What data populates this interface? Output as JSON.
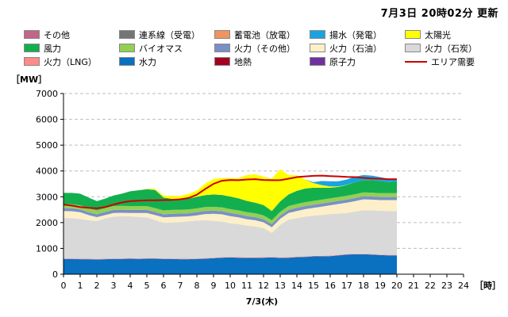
{
  "update_title": "7月3日 20時02分 更新",
  "legend": [
    {
      "key": "other",
      "label": "その他",
      "color": "#c36586",
      "kind": "area"
    },
    {
      "key": "interconnect",
      "label": "連系線（受電）",
      "color": "#757575",
      "kind": "area"
    },
    {
      "key": "battery",
      "label": "蓄電池（放電）",
      "color": "#f0955f",
      "kind": "area"
    },
    {
      "key": "pumped",
      "label": "揚水（発電）",
      "color": "#1aa3e0",
      "kind": "area"
    },
    {
      "key": "solar",
      "label": "太陽光",
      "color": "#ffff00",
      "kind": "area"
    },
    {
      "key": "wind",
      "label": "風力",
      "color": "#13af4f",
      "kind": "area"
    },
    {
      "key": "biomass",
      "label": "バイオマス",
      "color": "#93cf53",
      "kind": "area"
    },
    {
      "key": "thermal_other",
      "label": "火力（その他）",
      "color": "#7a8fc8",
      "kind": "area"
    },
    {
      "key": "oil",
      "label": "火力（石油）",
      "color": "#fdf0c8",
      "kind": "area"
    },
    {
      "key": "coal",
      "label": "火力（石炭）",
      "color": "#d9d9d9",
      "kind": "area"
    },
    {
      "key": "lng",
      "label": "火力（LNG）",
      "color": "#ff8a8a",
      "kind": "area"
    },
    {
      "key": "hydro",
      "label": "水力",
      "color": "#0a70c0",
      "kind": "area"
    },
    {
      "key": "geothermal",
      "label": "地熱",
      "color": "#a50021",
      "kind": "area"
    },
    {
      "key": "nuclear",
      "label": "原子力",
      "color": "#7030a0",
      "kind": "area"
    },
    {
      "key": "demand",
      "label": "エリア需要",
      "color": "#cc0000",
      "kind": "line"
    }
  ],
  "chart_data": {
    "type": "area",
    "stacked": true,
    "ylabel": "［MW］",
    "xlabel": "7/3(木)",
    "x_unit": "［時］",
    "ylim": [
      0,
      7000
    ],
    "xlim": [
      0,
      24
    ],
    "yticks": [
      0,
      1000,
      2000,
      3000,
      4000,
      5000,
      6000,
      7000
    ],
    "xticks": [
      "0",
      "1",
      "2",
      "3",
      "4",
      "5",
      "6",
      "7",
      "8",
      "9",
      "10",
      "11",
      "12",
      "13",
      "14",
      "15",
      "16",
      "17",
      "18",
      "19",
      "20",
      "21",
      "22",
      "23",
      "24"
    ],
    "grid": true,
    "x": [
      0,
      0.5,
      1,
      1.5,
      2,
      2.5,
      3,
      3.5,
      4,
      4.5,
      5,
      5.5,
      6,
      6.5,
      7,
      7.5,
      8,
      8.5,
      9,
      9.5,
      10,
      10.5,
      11,
      11.5,
      12,
      12.5,
      13,
      13.5,
      14,
      14.5,
      15,
      15.5,
      16,
      16.5,
      17,
      17.5,
      18,
      18.5,
      19,
      19.5,
      20
    ],
    "series": [
      {
        "name": "水力",
        "key": "hydro",
        "color": "#0a70c0",
        "values": [
          590,
          590,
          580,
          580,
          570,
          580,
          590,
          590,
          600,
          590,
          600,
          600,
          590,
          590,
          580,
          580,
          590,
          600,
          620,
          640,
          650,
          640,
          630,
          630,
          640,
          650,
          630,
          640,
          660,
          670,
          690,
          690,
          700,
          730,
          760,
          770,
          770,
          760,
          740,
          730,
          730
        ]
      },
      {
        "name": "火力（LNG）",
        "key": "lng",
        "color": "#ff8a8a",
        "values": [
          20,
          20,
          20,
          20,
          20,
          20,
          20,
          20,
          20,
          20,
          20,
          20,
          20,
          20,
          20,
          20,
          20,
          20,
          20,
          20,
          20,
          20,
          20,
          20,
          20,
          20,
          20,
          20,
          20,
          20,
          20,
          20,
          20,
          20,
          20,
          20,
          20,
          20,
          20,
          20,
          20
        ]
      },
      {
        "name": "火力（石炭）",
        "key": "coal",
        "color": "#d9d9d9",
        "values": [
          1570,
          1560,
          1540,
          1490,
          1470,
          1560,
          1620,
          1640,
          1620,
          1610,
          1580,
          1480,
          1380,
          1390,
          1420,
          1450,
          1470,
          1470,
          1430,
          1380,
          1300,
          1280,
          1230,
          1200,
          1130,
          930,
          1260,
          1450,
          1490,
          1540,
          1560,
          1590,
          1610,
          1600,
          1590,
          1640,
          1690,
          1690,
          1700,
          1700,
          1700
        ]
      },
      {
        "name": "火力（石油）",
        "key": "oil",
        "color": "#fdf0c8",
        "values": [
          270,
          270,
          260,
          200,
          150,
          130,
          140,
          130,
          130,
          150,
          170,
          190,
          210,
          220,
          210,
          190,
          200,
          240,
          270,
          280,
          280,
          260,
          250,
          240,
          220,
          220,
          240,
          260,
          280,
          290,
          300,
          320,
          340,
          370,
          400,
          400,
          420,
          420,
          410,
          420,
          420
        ]
      },
      {
        "name": "火力（その他）",
        "key": "thermal_other",
        "color": "#7a8fc8",
        "values": [
          110,
          110,
          110,
          110,
          110,
          120,
          120,
          120,
          120,
          120,
          120,
          120,
          120,
          120,
          120,
          120,
          120,
          120,
          120,
          120,
          120,
          120,
          120,
          120,
          120,
          120,
          120,
          120,
          120,
          120,
          120,
          120,
          120,
          120,
          120,
          120,
          120,
          120,
          120,
          120,
          120
        ]
      },
      {
        "name": "バイオマス",
        "key": "biomass",
        "color": "#93cf53",
        "values": [
          160,
          160,
          160,
          150,
          150,
          150,
          150,
          150,
          150,
          150,
          150,
          150,
          150,
          150,
          150,
          150,
          150,
          150,
          150,
          150,
          150,
          150,
          150,
          150,
          150,
          150,
          150,
          150,
          150,
          150,
          150,
          150,
          150,
          150,
          150,
          150,
          150,
          150,
          150,
          150,
          150
        ]
      },
      {
        "name": "風力",
        "key": "wind",
        "color": "#13af4f",
        "values": [
          430,
          440,
          450,
          420,
          360,
          370,
          410,
          470,
          570,
          610,
          650,
          700,
          500,
          430,
          390,
          420,
          450,
          460,
          480,
          480,
          490,
          470,
          440,
          410,
          400,
          360,
          400,
          450,
          510,
          530,
          510,
          460,
          410,
          390,
          420,
          470,
          470,
          480,
          470,
          430,
          440
        ]
      },
      {
        "name": "太陽光",
        "key": "solar",
        "color": "#ffff00",
        "values": [
          0,
          0,
          0,
          0,
          0,
          0,
          0,
          0,
          0,
          0,
          20,
          40,
          80,
          110,
          140,
          180,
          240,
          450,
          600,
          650,
          720,
          780,
          1000,
          1100,
          1100,
          1250,
          1250,
          750,
          600,
          350,
          180,
          100,
          50,
          20,
          10,
          0,
          0,
          0,
          0,
          0,
          0
        ]
      },
      {
        "name": "揚水（発電）",
        "key": "pumped",
        "color": "#1aa3e0",
        "values": [
          0,
          0,
          0,
          0,
          0,
          0,
          0,
          0,
          0,
          0,
          0,
          0,
          0,
          0,
          0,
          0,
          0,
          0,
          0,
          0,
          0,
          0,
          0,
          0,
          0,
          0,
          0,
          0,
          0,
          0,
          40,
          160,
          200,
          200,
          200,
          210,
          200,
          180,
          150,
          120,
          120
        ]
      }
    ],
    "demand": {
      "name": "エリア需要",
      "color": "#cc0000",
      "values": [
        2700,
        2660,
        2600,
        2570,
        2550,
        2600,
        2700,
        2780,
        2830,
        2850,
        2860,
        2860,
        2870,
        2880,
        2900,
        2950,
        3080,
        3300,
        3500,
        3620,
        3650,
        3640,
        3670,
        3680,
        3650,
        3640,
        3640,
        3700,
        3760,
        3790,
        3810,
        3820,
        3800,
        3790,
        3770,
        3760,
        3730,
        3710,
        3700,
        3680,
        3680
      ]
    }
  }
}
